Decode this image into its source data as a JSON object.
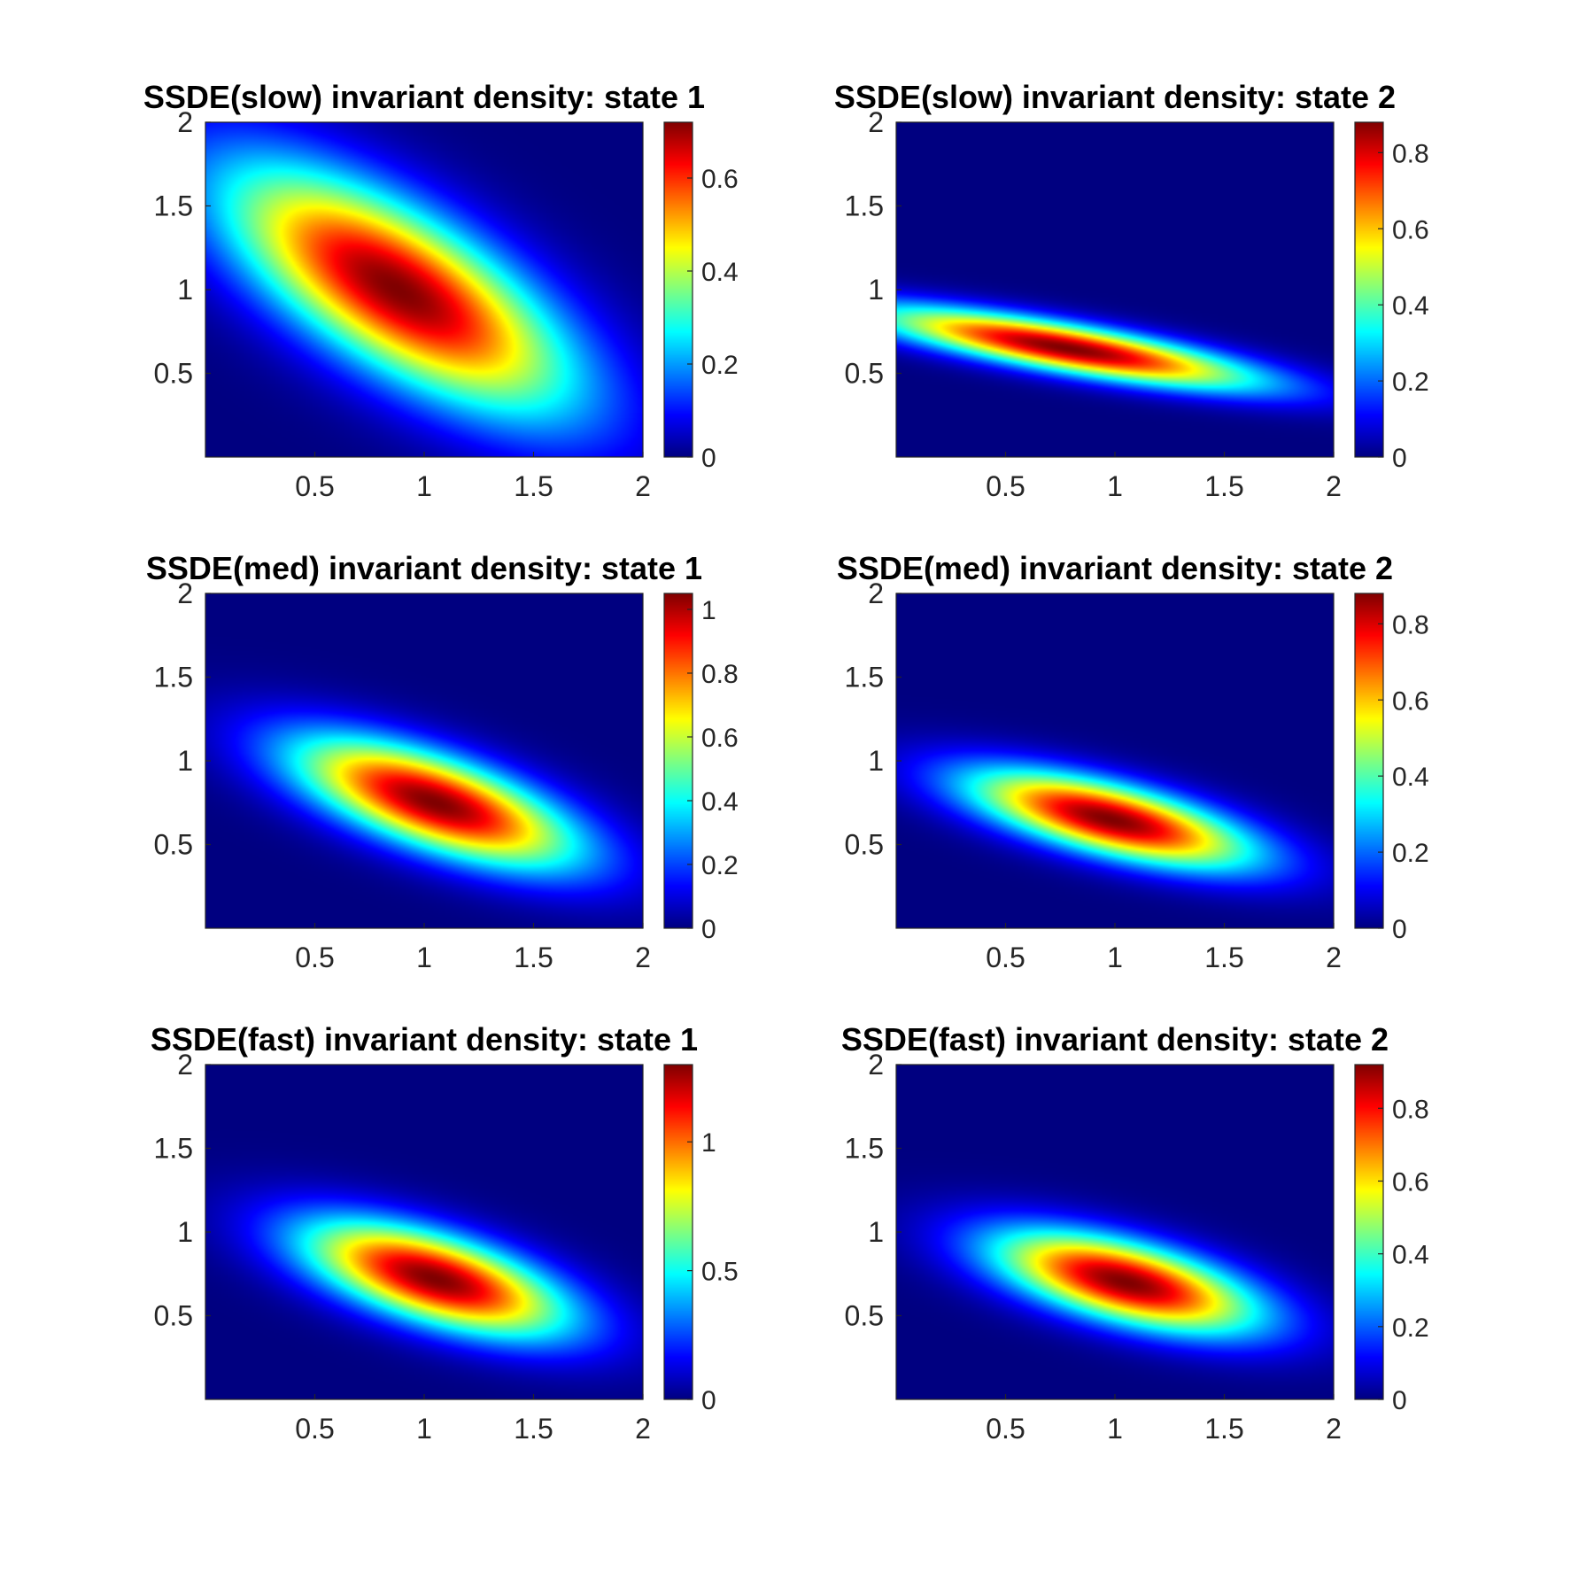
{
  "chart_data": [
    {
      "type": "heatmap",
      "title": "SSDE(slow) invariant density: state 1",
      "xlim": [
        0,
        2
      ],
      "ylim": [
        0,
        2
      ],
      "xticks": [
        0.5,
        1,
        1.5,
        2
      ],
      "xtick_labels": [
        "0.5",
        "1",
        "1.5",
        "2"
      ],
      "yticks": [
        0.5,
        1,
        1.5,
        2
      ],
      "ytick_labels": [
        "0.5",
        "1",
        "1.5",
        "2"
      ],
      "colormap": "jet",
      "clim": [
        0,
        0.72
      ],
      "cticks": [
        0,
        0.2,
        0.4,
        0.6
      ],
      "ctick_labels": [
        "0",
        "0.2",
        "0.4",
        "0.6"
      ],
      "peak": {
        "x": 0.88,
        "y": 1.0,
        "value": 0.72
      },
      "spread": {
        "along_x": 0.55,
        "along_y": 0.36,
        "lean": -0.65
      }
    },
    {
      "type": "heatmap",
      "title": "SSDE(slow) invariant density: state 2",
      "xlim": [
        0,
        2
      ],
      "ylim": [
        0,
        2
      ],
      "xticks": [
        0.5,
        1,
        1.5,
        2
      ],
      "xtick_labels": [
        "0.5",
        "1",
        "1.5",
        "2"
      ],
      "yticks": [
        0.5,
        1,
        1.5,
        2
      ],
      "ytick_labels": [
        "0.5",
        "1",
        "1.5",
        "2"
      ],
      "colormap": "jet",
      "clim": [
        0,
        0.88
      ],
      "cticks": [
        0,
        0.2,
        0.4,
        0.6,
        0.8
      ],
      "ctick_labels": [
        "0",
        "0.2",
        "0.4",
        "0.6",
        "0.8"
      ],
      "peak": {
        "x": 0.78,
        "y": 0.65,
        "value": 0.88
      },
      "spread": {
        "along_x": 0.6,
        "along_y": 0.1,
        "lean": -0.22
      }
    },
    {
      "type": "heatmap",
      "title": "SSDE(med) invariant density: state 1",
      "xlim": [
        0,
        2
      ],
      "ylim": [
        0,
        2
      ],
      "xticks": [
        0.5,
        1,
        1.5,
        2
      ],
      "xtick_labels": [
        "0.5",
        "1",
        "1.5",
        "2"
      ],
      "yticks": [
        0.5,
        1,
        1.5,
        2
      ],
      "ytick_labels": [
        "0.5",
        "1",
        "1.5",
        "2"
      ],
      "colormap": "jet",
      "clim": [
        0,
        1.05
      ],
      "cticks": [
        0,
        0.2,
        0.4,
        0.6,
        0.8,
        1
      ],
      "ctick_labels": [
        "0",
        "0.2",
        "0.4",
        "0.6",
        "0.8",
        "1"
      ],
      "peak": {
        "x": 1.05,
        "y": 0.75,
        "value": 1.05
      },
      "spread": {
        "along_x": 0.45,
        "along_y": 0.2,
        "lean": -0.4
      }
    },
    {
      "type": "heatmap",
      "title": "SSDE(med) invariant density: state 2",
      "xlim": [
        0,
        2
      ],
      "ylim": [
        0,
        2
      ],
      "xticks": [
        0.5,
        1,
        1.5,
        2
      ],
      "xtick_labels": [
        "0.5",
        "1",
        "1.5",
        "2"
      ],
      "yticks": [
        0.5,
        1,
        1.5,
        2
      ],
      "ytick_labels": [
        "0.5",
        "1",
        "1.5",
        "2"
      ],
      "colormap": "jet",
      "clim": [
        0,
        0.88
      ],
      "cticks": [
        0,
        0.2,
        0.4,
        0.6,
        0.8
      ],
      "ctick_labels": [
        "0",
        "0.2",
        "0.4",
        "0.6",
        "0.8"
      ],
      "peak": {
        "x": 0.98,
        "y": 0.65,
        "value": 0.88
      },
      "spread": {
        "along_x": 0.45,
        "along_y": 0.15,
        "lean": -0.3
      }
    },
    {
      "type": "heatmap",
      "title": "SSDE(fast) invariant density: state 1",
      "xlim": [
        0,
        2
      ],
      "ylim": [
        0,
        2
      ],
      "xticks": [
        0.5,
        1,
        1.5,
        2
      ],
      "xtick_labels": [
        "0.5",
        "1",
        "1.5",
        "2"
      ],
      "yticks": [
        0.5,
        1,
        1.5,
        2
      ],
      "ytick_labels": [
        "0.5",
        "1",
        "1.5",
        "2"
      ],
      "colormap": "jet",
      "clim": [
        0,
        1.3
      ],
      "cticks": [
        0,
        0.5,
        1
      ],
      "ctick_labels": [
        "0",
        "0.5",
        "1"
      ],
      "peak": {
        "x": 1.05,
        "y": 0.72,
        "value": 1.3
      },
      "spread": {
        "along_x": 0.42,
        "along_y": 0.19,
        "lean": -0.35
      }
    },
    {
      "type": "heatmap",
      "title": "SSDE(fast) invariant density: state 2",
      "xlim": [
        0,
        2
      ],
      "ylim": [
        0,
        2
      ],
      "xticks": [
        0.5,
        1,
        1.5,
        2
      ],
      "xtick_labels": [
        "0.5",
        "1",
        "1.5",
        "2"
      ],
      "yticks": [
        0.5,
        1,
        1.5,
        2
      ],
      "ytick_labels": [
        "0.5",
        "1",
        "1.5",
        "2"
      ],
      "colormap": "jet",
      "clim": [
        0,
        0.92
      ],
      "cticks": [
        0,
        0.2,
        0.4,
        0.6,
        0.8
      ],
      "ctick_labels": [
        "0",
        "0.2",
        "0.4",
        "0.6",
        "0.8"
      ],
      "peak": {
        "x": 1.05,
        "y": 0.7,
        "value": 0.92
      },
      "spread": {
        "along_x": 0.42,
        "along_y": 0.17,
        "lean": -0.3
      }
    }
  ]
}
